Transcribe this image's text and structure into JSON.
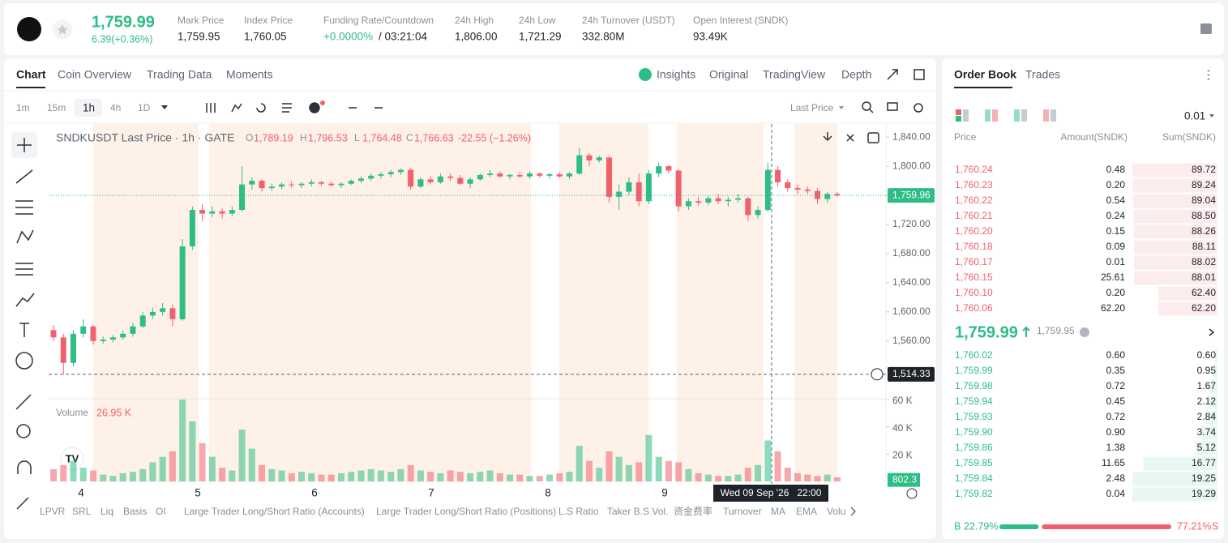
{
  "header": {
    "price": "1,759.99",
    "change": "6.39(+0.36%)",
    "stats": [
      {
        "label": "Mark Price",
        "value": "1,759.95"
      },
      {
        "label": "Index Price",
        "value": "1,760.05"
      },
      {
        "label": "Funding Rate/Countdown",
        "value": "+0.0000%",
        "extra": "/ 03:21:04"
      },
      {
        "label": "24h High",
        "value": "1,806.00"
      },
      {
        "label": "24h Low",
        "value": "1,721.29"
      },
      {
        "label": "24h Turnover (USDT)",
        "value": "332.80M"
      },
      {
        "label": "Open Interest (SNDK)",
        "value": "93.49K"
      }
    ]
  },
  "chart_tabs": [
    "Chart",
    "Coin Overview",
    "Trading Data",
    "Moments"
  ],
  "view_tabs": [
    "Insights",
    "Original",
    "TradingView",
    "Depth"
  ],
  "intervals": [
    "1m",
    "15m",
    "1h",
    "4h",
    "1D"
  ],
  "price_source": "Last Price",
  "chart_data": {
    "type": "candlestick",
    "legend": {
      "symbol": "SNDKUSDT Last Price · 1h · GATE",
      "o": "O",
      "o_value": "1,789.19",
      "h": "H",
      "h_value": "1,796.53",
      "l": "L",
      "l_value": "1,764.48",
      "c": "C",
      "c_value": "1,766.63",
      "change": "-22.55 (−1.26%)"
    },
    "up_color": "#2ebd85",
    "down_color": "#f0616d",
    "grid": false,
    "ylim": [
      1483,
      1858
    ],
    "yticks": [
      {
        "value": 1840,
        "label": "1,840.00"
      },
      {
        "value": 1800,
        "label": "1,800.00"
      },
      {
        "value": 1760,
        "label": "1,760.00"
      },
      {
        "value": 1720,
        "label": "1,720.00"
      },
      {
        "value": 1680,
        "label": "1,680.00"
      },
      {
        "value": 1640,
        "label": "1,640.00"
      },
      {
        "value": 1600,
        "label": "1,600.00"
      },
      {
        "value": 1560,
        "label": "1,560.00"
      }
    ],
    "ohlc": [
      [
        1575,
        1582,
        1560,
        1565
      ],
      [
        1565,
        1570,
        1514,
        1530
      ],
      [
        1530,
        1575,
        1525,
        1570
      ],
      [
        1570,
        1590,
        1565,
        1580
      ],
      [
        1580,
        1582,
        1555,
        1560
      ],
      [
        1560,
        1566,
        1556,
        1562
      ],
      [
        1562,
        1568,
        1558,
        1565
      ],
      [
        1565,
        1575,
        1562,
        1570
      ],
      [
        1570,
        1585,
        1566,
        1580
      ],
      [
        1580,
        1600,
        1578,
        1595
      ],
      [
        1595,
        1606,
        1590,
        1600
      ],
      [
        1600,
        1612,
        1595,
        1605
      ],
      [
        1605,
        1610,
        1580,
        1590
      ],
      [
        1590,
        1700,
        1588,
        1690
      ],
      [
        1690,
        1745,
        1685,
        1740
      ],
      [
        1740,
        1748,
        1725,
        1735
      ],
      [
        1735,
        1745,
        1730,
        1738
      ],
      [
        1738,
        1742,
        1728,
        1735
      ],
      [
        1735,
        1745,
        1732,
        1740
      ],
      [
        1740,
        1800,
        1738,
        1775
      ],
      [
        1775,
        1785,
        1768,
        1780
      ],
      [
        1780,
        1782,
        1765,
        1770
      ],
      [
        1770,
        1776,
        1766,
        1772
      ],
      [
        1772,
        1778,
        1768,
        1775
      ],
      [
        1775,
        1780,
        1770,
        1774
      ],
      [
        1774,
        1778,
        1770,
        1776
      ],
      [
        1776,
        1782,
        1772,
        1778
      ],
      [
        1778,
        1780,
        1773,
        1776
      ],
      [
        1776,
        1779,
        1772,
        1774
      ],
      [
        1774,
        1778,
        1770,
        1776
      ],
      [
        1776,
        1782,
        1774,
        1780
      ],
      [
        1780,
        1786,
        1777,
        1783
      ],
      [
        1783,
        1790,
        1780,
        1787
      ],
      [
        1787,
        1792,
        1783,
        1789
      ],
      [
        1789,
        1795,
        1785,
        1792
      ],
      [
        1792,
        1797,
        1788,
        1795
      ],
      [
        1795,
        1798,
        1768,
        1772
      ],
      [
        1772,
        1785,
        1770,
        1782
      ],
      [
        1782,
        1786,
        1775,
        1778
      ],
      [
        1778,
        1790,
        1776,
        1786
      ],
      [
        1786,
        1790,
        1780,
        1784
      ],
      [
        1784,
        1788,
        1774,
        1776
      ],
      [
        1776,
        1785,
        1770,
        1782
      ],
      [
        1782,
        1790,
        1780,
        1788
      ],
      [
        1788,
        1795,
        1785,
        1790
      ],
      [
        1790,
        1793,
        1784,
        1786
      ],
      [
        1786,
        1790,
        1782,
        1788
      ],
      [
        1788,
        1792,
        1784,
        1786
      ],
      [
        1786,
        1793,
        1783,
        1790
      ],
      [
        1790,
        1792,
        1784,
        1787
      ],
      [
        1787,
        1791,
        1783,
        1789
      ],
      [
        1789,
        1792,
        1784,
        1786
      ],
      [
        1786,
        1792,
        1782,
        1790
      ],
      [
        1790,
        1825,
        1788,
        1815
      ],
      [
        1815,
        1818,
        1800,
        1808
      ],
      [
        1808,
        1815,
        1805,
        1812
      ],
      [
        1812,
        1814,
        1750,
        1758
      ],
      [
        1758,
        1775,
        1740,
        1765
      ],
      [
        1765,
        1785,
        1760,
        1778
      ],
      [
        1778,
        1790,
        1745,
        1752
      ],
      [
        1752,
        1795,
        1748,
        1790
      ],
      [
        1790,
        1805,
        1785,
        1800
      ],
      [
        1800,
        1802,
        1790,
        1794
      ],
      [
        1794,
        1796,
        1738,
        1745
      ],
      [
        1745,
        1756,
        1740,
        1752
      ],
      [
        1752,
        1758,
        1746,
        1750
      ],
      [
        1750,
        1760,
        1746,
        1756
      ],
      [
        1756,
        1762,
        1748,
        1752
      ],
      [
        1752,
        1758,
        1745,
        1754
      ],
      [
        1754,
        1762,
        1750,
        1756
      ],
      [
        1756,
        1758,
        1725,
        1733
      ],
      [
        1733,
        1745,
        1728,
        1740
      ],
      [
        1740,
        1805,
        1738,
        1795
      ],
      [
        1795,
        1800,
        1772,
        1778
      ],
      [
        1778,
        1782,
        1765,
        1770
      ],
      [
        1770,
        1775,
        1762,
        1768
      ],
      [
        1768,
        1772,
        1762,
        1766
      ],
      [
        1766,
        1770,
        1748,
        1755
      ],
      [
        1755,
        1765,
        1750,
        1762
      ],
      [
        1762,
        1765,
        1758,
        1760
      ]
    ],
    "last_price": {
      "value": 1759.96,
      "label": "1,759.96"
    },
    "crosshair": {
      "value": 1514.33,
      "label": "1,514.33",
      "time": "Wed 09 Sep '26   22:00"
    },
    "x_labels": [
      "4",
      "5",
      "6",
      "7",
      "8",
      "9"
    ],
    "volume": {
      "title": "Volume",
      "last": "26.95 K",
      "ylim": [
        0,
        60000
      ],
      "yticks": [
        {
          "value": 60000,
          "label": "60 K"
        },
        {
          "value": 40000,
          "label": "40 K"
        },
        {
          "value": 20000,
          "label": "20 K"
        }
      ],
      "current": 802.3,
      "values": [
        9000,
        12000,
        15000,
        10000,
        8000,
        5000,
        4000,
        6000,
        7000,
        9000,
        14000,
        18000,
        22000,
        60000,
        44000,
        28000,
        18000,
        10000,
        8000,
        38000,
        24000,
        12000,
        9000,
        8000,
        6000,
        7000,
        6000,
        5000,
        5000,
        6000,
        7000,
        8000,
        9000,
        8000,
        7000,
        9000,
        12000,
        8000,
        7000,
        6000,
        8000,
        7000,
        6000,
        7000,
        8000,
        6000,
        5000,
        5000,
        4000,
        4000,
        5000,
        6000,
        7000,
        26000,
        15000,
        10000,
        22000,
        18000,
        12000,
        14000,
        34000,
        18000,
        15000,
        14000,
        9000,
        6000,
        5000,
        4000,
        4000,
        5000,
        10000,
        12000,
        30000,
        22000,
        10000,
        6000,
        5000,
        4000,
        5000,
        3000
      ]
    }
  },
  "indicators": [
    "LPVR",
    "SRL",
    "Liq",
    "Basis",
    "OI",
    "Large Trader Long/Short Ratio (Accounts)",
    "Large Trader Long/Short Ratio (Positions)",
    "L.S Ratio",
    "Taker B.S Vol.",
    "资金费率",
    "Turnover",
    "MA",
    "EMA",
    "Volu"
  ],
  "order_book": {
    "tabs": [
      "Order Book",
      "Trades"
    ],
    "tick": "0.01",
    "headers": [
      "Price",
      "Amount(SNDK)",
      "Sum(SNDK)"
    ],
    "asks": {
      "prices": [
        "1,760.24",
        "1,760.23",
        "1,760.22",
        "1,760.21",
        "1,760.20",
        "1,760.18",
        "1,760.17",
        "1,760.15",
        "1,760.10",
        "1,760.06"
      ],
      "amounts": [
        "0.48",
        "0.20",
        "0.54",
        "0.24",
        "0.15",
        "0.09",
        "0.01",
        "25.61",
        "0.20",
        "62.20"
      ],
      "sums": [
        89.72,
        89.24,
        89.04,
        88.5,
        88.26,
        88.11,
        88.02,
        88.01,
        62.4,
        62.2
      ],
      "sum_labels": [
        "89.72",
        "89.24",
        "89.04",
        "88.50",
        "88.26",
        "88.11",
        "88.02",
        "88.01",
        "62.40",
        "62.20"
      ]
    },
    "mid": {
      "price": "1,759.99",
      "mark": "1,759.95"
    },
    "bids": {
      "prices": [
        "1,760.02",
        "1,759.99",
        "1,759.98",
        "1,759.94",
        "1,759.93",
        "1,759.90",
        "1,759.86",
        "1,759.85",
        "1,759.84",
        "1,759.82"
      ],
      "amounts": [
        "0.60",
        "0.35",
        "0.72",
        "0.45",
        "0.72",
        "0.90",
        "1.38",
        "11.65",
        "2.48",
        "0.04"
      ],
      "sums": [
        0.6,
        0.95,
        1.67,
        2.12,
        2.84,
        3.74,
        5.12,
        16.77,
        19.25,
        19.29
      ],
      "sum_labels": [
        "0.60",
        "0.95",
        "1.67",
        "2.12",
        "2.84",
        "3.74",
        "5.12",
        "16.77",
        "19.25",
        "19.29"
      ]
    },
    "ratio": {
      "buy_letter": "B",
      "buy": 22.79,
      "buy_label": "22.79%",
      "sell": 77.21,
      "sell_label": "77.21%",
      "sell_letter": "S"
    }
  }
}
